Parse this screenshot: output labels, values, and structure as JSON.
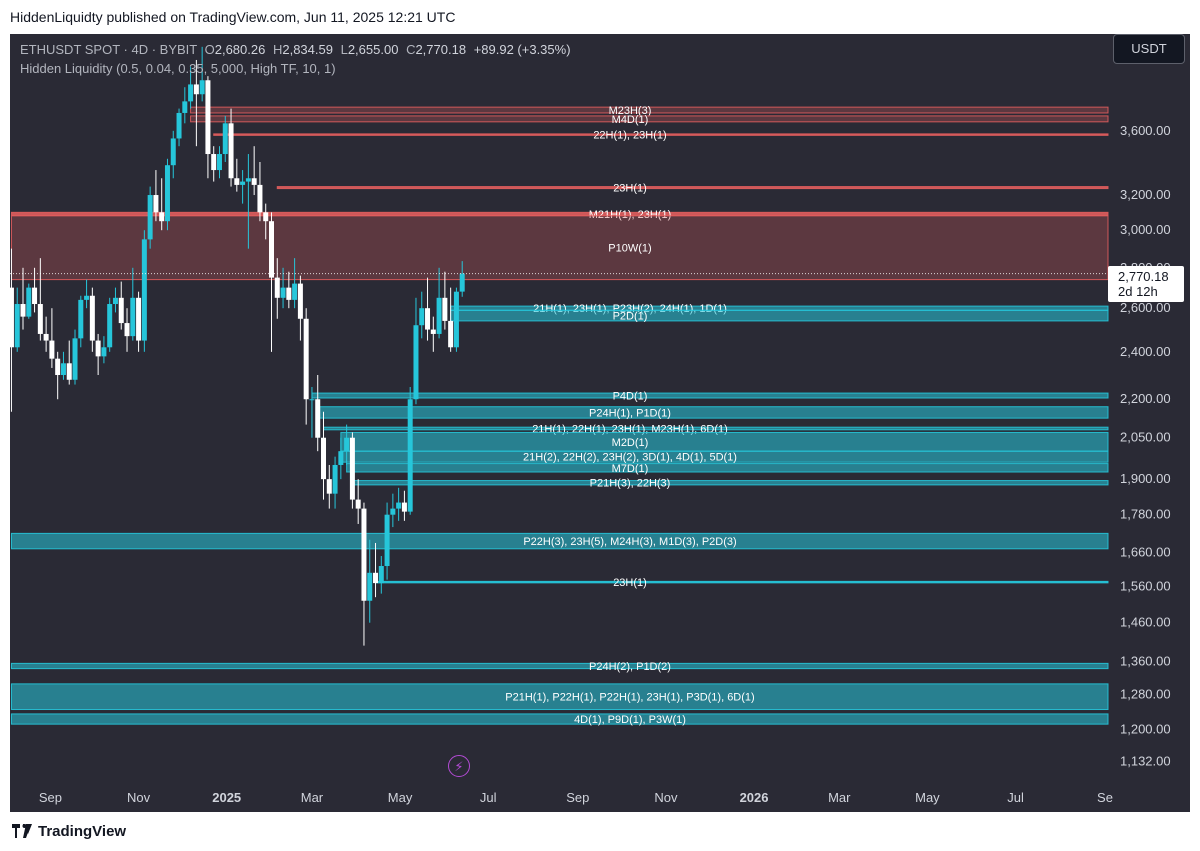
{
  "header": {
    "text": "HiddenLiquidty published on TradingView.com, Jun 11, 2025 12:21 UTC"
  },
  "legend": {
    "symbol": "ETHUSDT SPOT · 4D · BYBIT",
    "o_label": "O",
    "o": "2,680.26",
    "h_label": "H",
    "h": "2,834.59",
    "l_label": "L",
    "l": "2,655.00",
    "c_label": "C",
    "c": "2,770.18",
    "change": "+89.92 (+3.35%)",
    "indicator": "Hidden Liquidity (0.5, 0.04, 0.35, 5,000, High TF, 10, 1)"
  },
  "currency_badge": "USDT",
  "price_badge": {
    "price": "2,770.18",
    "countdown": "2d 12h"
  },
  "footer": {
    "brand": "TradingView"
  },
  "colors": {
    "background": "#2a2a35",
    "bull": "#26c6da",
    "bear": "#ffffff",
    "resistance": "#e05d5d",
    "support": "#26c6da"
  },
  "chart_data": {
    "type": "candlestick",
    "y_scale": "log",
    "ylim": [
      1100,
      4300
    ],
    "y_ticks": [
      {
        "value": 3600,
        "label": "3,600.00"
      },
      {
        "value": 3200,
        "label": "3,200.00"
      },
      {
        "value": 3000,
        "label": "3,000.00"
      },
      {
        "value": 2800,
        "label": "2,800.00"
      },
      {
        "value": 2600,
        "label": "2,600.00"
      },
      {
        "value": 2400,
        "label": "2,400.00"
      },
      {
        "value": 2200,
        "label": "2,200.00"
      },
      {
        "value": 2050,
        "label": "2,050.00"
      },
      {
        "value": 1900,
        "label": "1,900.00"
      },
      {
        "value": 1780,
        "label": "1,780.00"
      },
      {
        "value": 1660,
        "label": "1,660.00"
      },
      {
        "value": 1560,
        "label": "1,560.00"
      },
      {
        "value": 1460,
        "label": "1,460.00"
      },
      {
        "value": 1360,
        "label": "1,360.00"
      },
      {
        "value": 1280,
        "label": "1,280.00"
      },
      {
        "value": 1200,
        "label": "1,200.00"
      },
      {
        "value": 1132,
        "label": "1,132.00"
      }
    ],
    "x_ticks": [
      {
        "date": "2024-09-01",
        "label": "Sep",
        "bold": false
      },
      {
        "date": "2024-11-01",
        "label": "Nov",
        "bold": false
      },
      {
        "date": "2025-01-01",
        "label": "2025",
        "bold": true
      },
      {
        "date": "2025-03-01",
        "label": "Mar",
        "bold": false
      },
      {
        "date": "2025-05-01",
        "label": "May",
        "bold": false
      },
      {
        "date": "2025-07-01",
        "label": "Jul",
        "bold": false
      },
      {
        "date": "2025-09-01",
        "label": "Sep",
        "bold": false
      },
      {
        "date": "2025-11-01",
        "label": "Nov",
        "bold": false
      },
      {
        "date": "2026-01-01",
        "label": "2026",
        "bold": true
      },
      {
        "date": "2026-03-01",
        "label": "Mar",
        "bold": false
      },
      {
        "date": "2026-05-01",
        "label": "May",
        "bold": false
      },
      {
        "date": "2026-07-01",
        "label": "Jul",
        "bold": false
      },
      {
        "date": "2026-09-01",
        "label": "Se",
        "bold": false
      }
    ],
    "xlim": [
      "2024-08-04",
      "2026-09-03"
    ],
    "last_price": 2770.18,
    "candles": [
      {
        "d": "2024-08-05",
        "o": 2700,
        "h": 2900,
        "l": 2150,
        "c": 2420
      },
      {
        "d": "2024-08-09",
        "o": 2420,
        "h": 2700,
        "l": 2400,
        "c": 2620
      },
      {
        "d": "2024-08-13",
        "o": 2620,
        "h": 2800,
        "l": 2500,
        "c": 2560
      },
      {
        "d": "2024-08-17",
        "o": 2560,
        "h": 2720,
        "l": 2550,
        "c": 2700
      },
      {
        "d": "2024-08-21",
        "o": 2700,
        "h": 2800,
        "l": 2580,
        "c": 2620
      },
      {
        "d": "2024-08-25",
        "o": 2620,
        "h": 2850,
        "l": 2450,
        "c": 2480
      },
      {
        "d": "2024-08-29",
        "o": 2480,
        "h": 2560,
        "l": 2400,
        "c": 2450
      },
      {
        "d": "2024-09-02",
        "o": 2450,
        "h": 2600,
        "l": 2330,
        "c": 2370
      },
      {
        "d": "2024-09-06",
        "o": 2370,
        "h": 2400,
        "l": 2200,
        "c": 2300
      },
      {
        "d": "2024-09-10",
        "o": 2300,
        "h": 2400,
        "l": 2280,
        "c": 2350
      },
      {
        "d": "2024-09-14",
        "o": 2350,
        "h": 2450,
        "l": 2260,
        "c": 2280
      },
      {
        "d": "2024-09-18",
        "o": 2280,
        "h": 2500,
        "l": 2260,
        "c": 2460
      },
      {
        "d": "2024-09-22",
        "o": 2460,
        "h": 2660,
        "l": 2420,
        "c": 2640
      },
      {
        "d": "2024-09-26",
        "o": 2640,
        "h": 2740,
        "l": 2600,
        "c": 2660
      },
      {
        "d": "2024-09-30",
        "o": 2660,
        "h": 2700,
        "l": 2400,
        "c": 2450
      },
      {
        "d": "2024-10-04",
        "o": 2450,
        "h": 2480,
        "l": 2300,
        "c": 2380
      },
      {
        "d": "2024-10-08",
        "o": 2380,
        "h": 2470,
        "l": 2350,
        "c": 2420
      },
      {
        "d": "2024-10-12",
        "o": 2420,
        "h": 2650,
        "l": 2400,
        "c": 2620
      },
      {
        "d": "2024-10-16",
        "o": 2620,
        "h": 2700,
        "l": 2580,
        "c": 2650
      },
      {
        "d": "2024-10-20",
        "o": 2650,
        "h": 2730,
        "l": 2500,
        "c": 2530
      },
      {
        "d": "2024-10-24",
        "o": 2530,
        "h": 2600,
        "l": 2400,
        "c": 2470
      },
      {
        "d": "2024-10-28",
        "o": 2470,
        "h": 2800,
        "l": 2450,
        "c": 2650
      },
      {
        "d": "2024-11-01",
        "o": 2650,
        "h": 2680,
        "l": 2400,
        "c": 2450
      },
      {
        "d": "2024-11-05",
        "o": 2450,
        "h": 3000,
        "l": 2400,
        "c": 2950
      },
      {
        "d": "2024-11-09",
        "o": 2950,
        "h": 3250,
        "l": 2900,
        "c": 3200
      },
      {
        "d": "2024-11-13",
        "o": 3200,
        "h": 3350,
        "l": 3050,
        "c": 3100
      },
      {
        "d": "2024-11-17",
        "o": 3100,
        "h": 3300,
        "l": 3000,
        "c": 3050
      },
      {
        "d": "2024-11-21",
        "o": 3050,
        "h": 3420,
        "l": 3000,
        "c": 3380
      },
      {
        "d": "2024-11-25",
        "o": 3380,
        "h": 3600,
        "l": 3300,
        "c": 3550
      },
      {
        "d": "2024-11-29",
        "o": 3550,
        "h": 3750,
        "l": 3500,
        "c": 3720
      },
      {
        "d": "2024-12-03",
        "o": 3720,
        "h": 3900,
        "l": 3650,
        "c": 3800
      },
      {
        "d": "2024-12-07",
        "o": 3800,
        "h": 4050,
        "l": 3750,
        "c": 3920
      },
      {
        "d": "2024-12-11",
        "o": 3920,
        "h": 4100,
        "l": 3500,
        "c": 3850
      },
      {
        "d": "2024-12-15",
        "o": 3850,
        "h": 4200,
        "l": 3800,
        "c": 3950
      },
      {
        "d": "2024-12-19",
        "o": 3950,
        "h": 3980,
        "l": 3300,
        "c": 3450
      },
      {
        "d": "2024-12-23",
        "o": 3450,
        "h": 3500,
        "l": 3280,
        "c": 3350
      },
      {
        "d": "2024-12-27",
        "o": 3350,
        "h": 3500,
        "l": 3300,
        "c": 3450
      },
      {
        "d": "2024-12-31",
        "o": 3450,
        "h": 3700,
        "l": 3400,
        "c": 3650
      },
      {
        "d": "2025-01-04",
        "o": 3650,
        "h": 3750,
        "l": 3250,
        "c": 3300
      },
      {
        "d": "2025-01-08",
        "o": 3300,
        "h": 3420,
        "l": 3220,
        "c": 3260
      },
      {
        "d": "2025-01-12",
        "o": 3260,
        "h": 3350,
        "l": 3150,
        "c": 3280
      },
      {
        "d": "2025-01-16",
        "o": 3280,
        "h": 3450,
        "l": 2900,
        "c": 3300
      },
      {
        "d": "2025-01-20",
        "o": 3300,
        "h": 3500,
        "l": 3200,
        "c": 3260
      },
      {
        "d": "2025-01-24",
        "o": 3260,
        "h": 3400,
        "l": 3050,
        "c": 3100
      },
      {
        "d": "2025-01-28",
        "o": 3100,
        "h": 3150,
        "l": 2950,
        "c": 3050
      },
      {
        "d": "2025-02-01",
        "o": 3050,
        "h": 3100,
        "l": 2400,
        "c": 2750
      },
      {
        "d": "2025-02-05",
        "o": 2750,
        "h": 2850,
        "l": 2550,
        "c": 2650
      },
      {
        "d": "2025-02-09",
        "o": 2650,
        "h": 2800,
        "l": 2600,
        "c": 2700
      },
      {
        "d": "2025-02-13",
        "o": 2700,
        "h": 2780,
        "l": 2600,
        "c": 2640
      },
      {
        "d": "2025-02-17",
        "o": 2640,
        "h": 2850,
        "l": 2600,
        "c": 2720
      },
      {
        "d": "2025-02-21",
        "o": 2720,
        "h": 2760,
        "l": 2450,
        "c": 2550
      },
      {
        "d": "2025-02-25",
        "o": 2550,
        "h": 2600,
        "l": 2100,
        "c": 2200
      },
      {
        "d": "2025-03-01",
        "o": 2200,
        "h": 2250,
        "l": 2050,
        "c": 2200
      },
      {
        "d": "2025-03-05",
        "o": 2200,
        "h": 2300,
        "l": 2000,
        "c": 2050
      },
      {
        "d": "2025-03-09",
        "o": 2050,
        "h": 2150,
        "l": 1830,
        "c": 1900
      },
      {
        "d": "2025-03-13",
        "o": 1900,
        "h": 1950,
        "l": 1800,
        "c": 1850
      },
      {
        "d": "2025-03-17",
        "o": 1850,
        "h": 1980,
        "l": 1800,
        "c": 1950
      },
      {
        "d": "2025-03-21",
        "o": 1950,
        "h": 2050,
        "l": 1900,
        "c": 2000
      },
      {
        "d": "2025-03-25",
        "o": 2000,
        "h": 2100,
        "l": 1950,
        "c": 2050
      },
      {
        "d": "2025-03-29",
        "o": 2050,
        "h": 2070,
        "l": 1800,
        "c": 1830
      },
      {
        "d": "2025-04-02",
        "o": 1830,
        "h": 1900,
        "l": 1750,
        "c": 1800
      },
      {
        "d": "2025-04-06",
        "o": 1800,
        "h": 1820,
        "l": 1400,
        "c": 1520
      },
      {
        "d": "2025-04-10",
        "o": 1520,
        "h": 1700,
        "l": 1460,
        "c": 1600
      },
      {
        "d": "2025-04-14",
        "o": 1600,
        "h": 1690,
        "l": 1530,
        "c": 1570
      },
      {
        "d": "2025-04-18",
        "o": 1570,
        "h": 1650,
        "l": 1540,
        "c": 1620
      },
      {
        "d": "2025-04-22",
        "o": 1620,
        "h": 1820,
        "l": 1580,
        "c": 1780
      },
      {
        "d": "2025-04-26",
        "o": 1780,
        "h": 1850,
        "l": 1740,
        "c": 1800
      },
      {
        "d": "2025-04-30",
        "o": 1800,
        "h": 1870,
        "l": 1760,
        "c": 1820
      },
      {
        "d": "2025-05-04",
        "o": 1820,
        "h": 1860,
        "l": 1760,
        "c": 1790
      },
      {
        "d": "2025-05-08",
        "o": 1790,
        "h": 2250,
        "l": 1780,
        "c": 2200
      },
      {
        "d": "2025-05-12",
        "o": 2200,
        "h": 2650,
        "l": 2180,
        "c": 2520
      },
      {
        "d": "2025-05-16",
        "o": 2520,
        "h": 2680,
        "l": 2460,
        "c": 2600
      },
      {
        "d": "2025-05-20",
        "o": 2600,
        "h": 2750,
        "l": 2450,
        "c": 2500
      },
      {
        "d": "2025-05-24",
        "o": 2500,
        "h": 2560,
        "l": 2400,
        "c": 2480
      },
      {
        "d": "2025-05-28",
        "o": 2480,
        "h": 2800,
        "l": 2460,
        "c": 2650
      },
      {
        "d": "2025-06-01",
        "o": 2650,
        "h": 2780,
        "l": 2500,
        "c": 2540
      },
      {
        "d": "2025-06-05",
        "o": 2540,
        "h": 2700,
        "l": 2400,
        "c": 2420
      },
      {
        "d": "2025-06-09",
        "o": 2420,
        "h": 2700,
        "l": 2400,
        "c": 2680
      },
      {
        "d": "2025-06-13",
        "o": 2680.26,
        "h": 2834.59,
        "l": 2655,
        "c": 2770.18
      }
    ],
    "zones": [
      {
        "label": "M23H(3)",
        "kind": "resistance",
        "lo": 3720,
        "hi": 3760,
        "start": "2024-12-07",
        "fill": true
      },
      {
        "label": "M4D(1)",
        "kind": "resistance",
        "lo": 3660,
        "hi": 3700,
        "start": "2024-12-07",
        "fill": true
      },
      {
        "label": "22H(1), 23H(1)",
        "kind": "resistance",
        "lo": 3575,
        "hi": 3580,
        "start": "2024-12-23",
        "fill": false
      },
      {
        "label": "23H(1)",
        "kind": "resistance",
        "lo": 3238,
        "hi": 3250,
        "start": "2025-02-05",
        "fill": false
      },
      {
        "label": "M21H(1), 23H(1)",
        "kind": "resistance",
        "lo": 3082,
        "hi": 3100,
        "start": "2024-08-05",
        "fill": false
      },
      {
        "label": "P10W(1)",
        "kind": "resistance",
        "lo": 2740,
        "hi": 3080,
        "start": "2024-08-05",
        "fill": true
      },
      {
        "label": "21H(1), 23H(1), P23H(2), 24H(1), 1D(1)",
        "kind": "support",
        "lo": 2590,
        "hi": 2610,
        "start": "2025-06-05",
        "fill": true
      },
      {
        "label": "P2D(1)",
        "kind": "support",
        "lo": 2540,
        "hi": 2590,
        "start": "2025-06-05",
        "fill": true
      },
      {
        "label": "P4D(1)",
        "kind": "support",
        "lo": 2205,
        "hi": 2225,
        "start": "2025-03-01",
        "fill": true
      },
      {
        "label": "P24H(1), P1D(1)",
        "kind": "support",
        "lo": 2125,
        "hi": 2170,
        "start": "2025-03-05",
        "fill": true
      },
      {
        "label": "21H(1), 22H(1), 23H(1), M23H(1), 6D(1)",
        "kind": "support",
        "lo": 2080,
        "hi": 2090,
        "start": "2025-03-09",
        "fill": true
      },
      {
        "label": "M2D(1)",
        "kind": "support",
        "lo": 2000,
        "hi": 2070,
        "start": "2025-03-21",
        "fill": true
      },
      {
        "label": "21H(2), 22H(2), 23H(2), 3D(1), 4D(1), 5D(1)",
        "kind": "support",
        "lo": 1960,
        "hi": 2000,
        "start": "2025-03-21",
        "fill": true
      },
      {
        "label": "M7D(1)",
        "kind": "support",
        "lo": 1925,
        "hi": 1955,
        "start": "2025-03-25",
        "fill": true
      },
      {
        "label": "P21H(3), 22H(3)",
        "kind": "support",
        "lo": 1880,
        "hi": 1895,
        "start": "2025-03-29",
        "fill": true
      },
      {
        "label": "P22H(3), 23H(5), M24H(3), M1D(3), P2D(3)",
        "kind": "support",
        "lo": 1672,
        "hi": 1720,
        "start": "2024-08-05",
        "fill": true
      },
      {
        "label": "23H(1)",
        "kind": "support",
        "lo": 1572,
        "hi": 1575,
        "start": "2025-04-14",
        "fill": false
      },
      {
        "label": "P24H(2), P1D(2)",
        "kind": "support",
        "lo": 1342,
        "hi": 1355,
        "start": "2024-08-05",
        "fill": true
      },
      {
        "label": "P21H(1), P22H(1), P22H(1), 23H(1), P3D(1), 6D(1)",
        "kind": "support",
        "lo": 1245,
        "hi": 1305,
        "start": "2024-08-05",
        "fill": true
      },
      {
        "label": "4D(1), P9D(1), P3W(1)",
        "kind": "support",
        "lo": 1212,
        "hi": 1235,
        "start": "2024-08-05",
        "fill": true
      }
    ]
  }
}
